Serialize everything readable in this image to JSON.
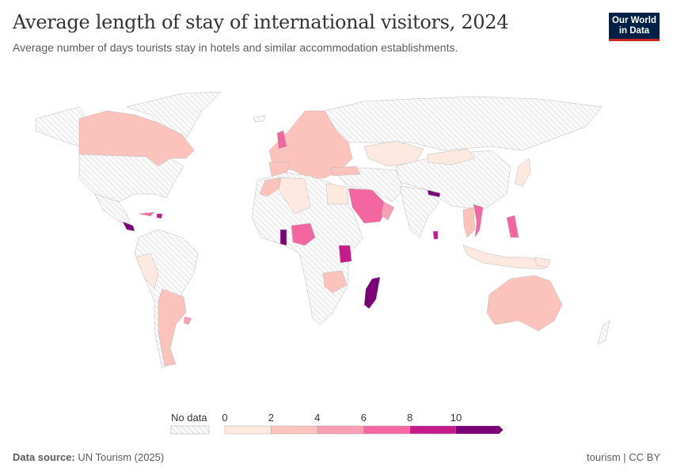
{
  "header": {
    "title": "Average length of stay of international visitors, 2024",
    "subtitle": "Average number of days tourists stay in hotels and similar accommodation establishments.",
    "logo_text": "Our World in Data"
  },
  "legend": {
    "no_data_label": "No data",
    "no_data_color": "#e9e9e9",
    "bins": [
      {
        "from": 0,
        "to": 2,
        "color": "#fde9e0"
      },
      {
        "from": 2,
        "to": 4,
        "color": "#fbc3bc"
      },
      {
        "from": 4,
        "to": 6,
        "color": "#f89eb3"
      },
      {
        "from": 6,
        "to": 8,
        "color": "#f466a0"
      },
      {
        "from": 8,
        "to": 10,
        "color": "#c51b8a"
      },
      {
        "from": 10,
        "to": null,
        "color": "#7a0177"
      }
    ],
    "ticks": [
      "0",
      "2",
      "4",
      "6",
      "8",
      "10"
    ]
  },
  "footer": {
    "source_label": "Data source:",
    "source": "UN Tourism (2025)",
    "right": "tourism | CC BY"
  }
}
